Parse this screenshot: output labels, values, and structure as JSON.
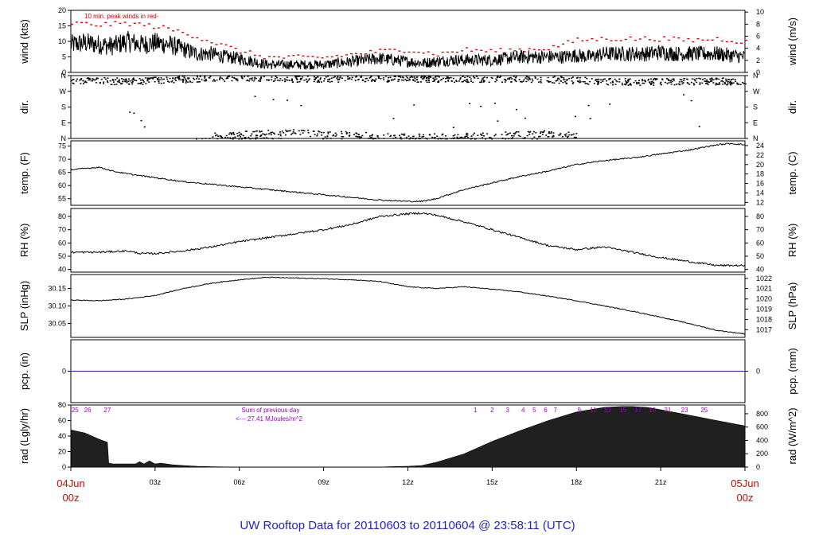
{
  "page_title": "UW Rooftop Data for 20110603  to  20110604 @ 23:58:11  (UTC)",
  "chart_data": {
    "type": "line",
    "x_axis": {
      "unit": "hours UTC",
      "range": [
        0,
        24
      ],
      "ticks": [
        {
          "hour": 0,
          "label": "04Jun",
          "sublabel": "00z",
          "color": "#e00000"
        },
        {
          "hour": 3,
          "label": "03z"
        },
        {
          "hour": 6,
          "label": "06z"
        },
        {
          "hour": 9,
          "label": "09z"
        },
        {
          "hour": 12,
          "label": "12z"
        },
        {
          "hour": 15,
          "label": "15z"
        },
        {
          "hour": 18,
          "label": "18z"
        },
        {
          "hour": 21,
          "label": "21z"
        },
        {
          "hour": 24,
          "label": "05Jun",
          "sublabel": "00z",
          "color": "#e00000"
        }
      ]
    },
    "panels": [
      {
        "id": "wind",
        "ylabel": "wind (kts)",
        "ylabel_right": "wind (m/s)",
        "ylim": [
          0,
          20
        ],
        "yticks": [
          0,
          5,
          10,
          15,
          20
        ],
        "yticks_right": [
          {
            "value": 0,
            "at": 0
          },
          {
            "value": 2,
            "at": 3.89
          },
          {
            "value": 4,
            "at": 7.78
          },
          {
            "value": 6,
            "at": 11.66
          },
          {
            "value": 8,
            "at": 15.55
          },
          {
            "value": 10,
            "at": 19.44
          }
        ],
        "annotation": "10 min. peak winds in red-",
        "annotation_color": "#e00000",
        "series": [
          {
            "name": "wind",
            "color": "#000000",
            "x": [
              0,
              0.5,
              1,
              1.5,
              2,
              2.5,
              3,
              3.5,
              4,
              4.5,
              5,
              5.5,
              6,
              6.5,
              7,
              7.5,
              8,
              8.5,
              9,
              9.5,
              10,
              10.5,
              11,
              11.5,
              12,
              12.5,
              13,
              13.5,
              14,
              14.5,
              15,
              15.5,
              16,
              16.5,
              17,
              17.5,
              18,
              18.5,
              19,
              19.5,
              20,
              20.5,
              21,
              21.5,
              22,
              22.5,
              23,
              23.5,
              24
            ],
            "values": [
              9,
              9.5,
              9,
              8.5,
              10,
              9,
              9.5,
              9,
              7.5,
              6,
              6,
              5,
              4.5,
              3.5,
              2.5,
              2.5,
              2.5,
              2.5,
              2.5,
              3,
              3.5,
              4,
              4.5,
              4,
              3.5,
              3,
              3.5,
              4,
              4,
              4,
              4,
              4.5,
              5,
              5,
              5,
              5,
              5.5,
              5,
              6,
              6,
              6,
              6,
              6.5,
              6,
              6,
              6,
              6,
              5.5,
              5
            ],
            "variability": 2.6
          },
          {
            "name": "10 min. peak winds",
            "color": "#e00000",
            "x": [
              0,
              1,
              2,
              3,
              4,
              5,
              6,
              7,
              8,
              9,
              10,
              11,
              12,
              13,
              14,
              15,
              16,
              17,
              18,
              19,
              20,
              21,
              22,
              23,
              24
            ],
            "values": [
              16,
              15.5,
              16,
              15,
              13,
              10,
              7,
              5,
              5,
              5,
              6,
              7,
              7.5,
              6,
              7.5,
              7,
              7.5,
              8,
              10.5,
              11,
              11,
              11,
              10.5,
              11,
              10
            ]
          }
        ]
      },
      {
        "id": "dir",
        "ylabel": "dir.",
        "ylabel_right": "dir.",
        "yticks_labels": [
          "N",
          "W",
          "S",
          "E",
          "N"
        ],
        "series": [
          {
            "name": "northwest sector",
            "x": [
              0,
              2,
              4,
              6,
              8,
              10,
              12,
              14,
              16,
              18,
              20,
              22,
              24
            ],
            "values": [
              335,
              330,
              340,
              350,
              345,
              345,
              345,
              345,
              345,
              335,
              325,
              330,
              330
            ],
            "spread": 20
          },
          {
            "name": "northeast sector",
            "x": [
              5,
              6,
              7,
              8,
              9,
              10,
              11,
              12,
              13,
              14,
              15,
              16,
              17,
              18
            ],
            "values": [
              20,
              25,
              35,
              35,
              30,
              25,
              15,
              10,
              12,
              15,
              20,
              25,
              30,
              20
            ],
            "spread": 18
          }
        ]
      },
      {
        "id": "temp",
        "ylabel": "temp. (F)",
        "ylabel_right": "temp. (C)",
        "ylim": [
          52.5,
          77
        ],
        "yticks": [
          55,
          60,
          65,
          70,
          75
        ],
        "yticks_right": [
          12,
          14,
          16,
          18,
          20,
          22,
          24
        ],
        "series": [
          {
            "name": "temperature",
            "color": "#000000",
            "x": [
              0,
              0.5,
              1,
              1.5,
              2,
              3,
              4,
              5,
              6,
              7,
              8,
              9,
              10,
              11,
              12,
              12.5,
              13,
              14,
              15,
              16,
              17,
              18,
              19,
              20,
              21,
              22,
              23,
              23.5,
              24
            ],
            "values": [
              66,
              66.5,
              67,
              65.5,
              64.5,
              63,
              61.5,
              60.5,
              59.5,
              58.5,
              57.5,
              56.5,
              55.5,
              54.5,
              54,
              54,
              55,
              58.5,
              61,
              63.5,
              65.5,
              68,
              69.5,
              70.5,
              72,
              73.5,
              75.5,
              76,
              75.5
            ]
          }
        ]
      },
      {
        "id": "rh",
        "ylabel": "RH (%)",
        "ylabel_right": "RH (%)",
        "ylim": [
          38,
          86
        ],
        "yticks": [
          40,
          50,
          60,
          70,
          80
        ],
        "yticks_right": [
          40,
          50,
          60,
          70,
          80
        ],
        "series": [
          {
            "name": "relative humidity",
            "color": "#000000",
            "x": [
              0,
              1,
              2,
              2.5,
              3,
              4,
              5,
              6,
              7,
              8,
              9,
              10,
              11,
              12,
              12.5,
              13,
              14,
              15,
              16,
              17,
              18,
              19,
              20,
              21,
              22,
              23,
              24
            ],
            "values": [
              53,
              53,
              54,
              52,
              52,
              54,
              57,
              61,
              64,
              67,
              70,
              74,
              80,
              82,
              82.5,
              81,
              76,
              70,
              64,
              58,
              55,
              57,
              53,
              49,
              46,
              43,
              43
            ]
          }
        ]
      },
      {
        "id": "slp",
        "ylabel": "SLP (inHg)",
        "ylabel_right": "SLP (hPa)",
        "ylim": [
          30.01,
          30.19
        ],
        "yticks": [
          30.05,
          30.1,
          30.15
        ],
        "yticks_labels": [
          "30.05",
          "30.10",
          "30.15"
        ],
        "yticks_right": [
          {
            "value": 1017,
            "at": 30.032
          },
          {
            "value": 1018,
            "at": 30.061
          },
          {
            "value": 1019,
            "at": 30.091
          },
          {
            "value": 1020,
            "at": 30.12
          },
          {
            "value": 1021,
            "at": 30.15
          },
          {
            "value": 1022,
            "at": 30.179
          }
        ],
        "series": [
          {
            "name": "sea level pressure",
            "color": "#000000",
            "x": [
              0,
              1,
              2,
              3,
              4,
              5,
              6,
              7,
              8,
              9,
              10,
              11,
              12,
              13,
              14,
              15,
              16,
              17,
              18,
              19,
              20,
              21,
              22,
              23,
              24
            ],
            "values": [
              30.117,
              30.115,
              30.12,
              30.13,
              30.15,
              30.165,
              30.175,
              30.182,
              30.18,
              30.178,
              30.175,
              30.17,
              30.155,
              30.15,
              30.155,
              30.148,
              30.14,
              30.128,
              30.115,
              30.1,
              30.085,
              30.068,
              30.05,
              30.03,
              30.02
            ]
          }
        ]
      },
      {
        "id": "pcp",
        "ylabel": "pcp. (in)",
        "ylabel_right": "pcp. (mm)",
        "ylim": [
          -1,
          1
        ],
        "yticks": [
          0
        ],
        "yticks_right": [
          0
        ],
        "series": [
          {
            "name": "precipitation",
            "color": "#1f1fd0",
            "x": [
              0,
              24
            ],
            "values": [
              0,
              0
            ]
          }
        ]
      },
      {
        "id": "rad",
        "ylabel": "rad (Lgly/hr)",
        "ylabel_right": "rad (W/m^2)",
        "ylim": [
          0,
          80
        ],
        "yticks": [
          0,
          20,
          40,
          60,
          80
        ],
        "yticks_right": [
          {
            "value": 0,
            "at": 0
          },
          {
            "value": 200,
            "at": 17.2
          },
          {
            "value": 400,
            "at": 34.4
          },
          {
            "value": 600,
            "at": 51.6
          },
          {
            "value": 800,
            "at": 68.8
          }
        ],
        "annotations": [
          "Sum of previous day",
          "<--- 27.41 MJoules/m^2"
        ],
        "annotation_color": "#9900cc",
        "sun_angle_labels": [
          {
            "hour": 0.15,
            "label": "25"
          },
          {
            "hour": 0.6,
            "label": "26"
          },
          {
            "hour": 1.3,
            "label": "27"
          },
          {
            "hour": 14.4,
            "label": "1"
          },
          {
            "hour": 15.0,
            "label": "2"
          },
          {
            "hour": 15.55,
            "label": "3"
          },
          {
            "hour": 16.1,
            "label": "4"
          },
          {
            "hour": 16.5,
            "label": "5"
          },
          {
            "hour": 16.9,
            "label": "6"
          },
          {
            "hour": 17.25,
            "label": "7"
          },
          {
            "hour": 18.1,
            "label": "9"
          },
          {
            "hour": 18.6,
            "label": "11"
          },
          {
            "hour": 19.1,
            "label": "13"
          },
          {
            "hour": 19.65,
            "label": "15"
          },
          {
            "hour": 20.2,
            "label": "17"
          },
          {
            "hour": 20.7,
            "label": "19"
          },
          {
            "hour": 21.25,
            "label": "21"
          },
          {
            "hour": 21.85,
            "label": "23"
          },
          {
            "hour": 22.55,
            "label": "25"
          }
        ],
        "series": [
          {
            "name": "solar radiation",
            "color": "#202020",
            "type": "area",
            "x": [
              0,
              0.5,
              1,
              1.3,
              1.35,
              1.5,
              2,
              2.3,
              2.45,
              2.6,
              2.8,
              3,
              3.2,
              3.4,
              3.6,
              4,
              4.5,
              5,
              6,
              7,
              8,
              9,
              10,
              11,
              11.3,
              12,
              12.5,
              13,
              14,
              15,
              16,
              17,
              18,
              19,
              19.6,
              20,
              20.5,
              21,
              22,
              23,
              24
            ],
            "values": [
              48,
              44,
              36,
              32,
              5,
              4,
              4,
              4,
              7,
              4,
              8,
              4,
              5,
              4,
              3,
              2,
              1,
              0.5,
              0,
              0,
              0,
              0,
              0,
              0,
              0.5,
              1,
              2,
              6,
              17,
              33,
              47,
              60,
              71,
              77,
              78,
              78,
              77,
              74,
              67,
              60,
              53
            ]
          }
        ]
      }
    ]
  }
}
